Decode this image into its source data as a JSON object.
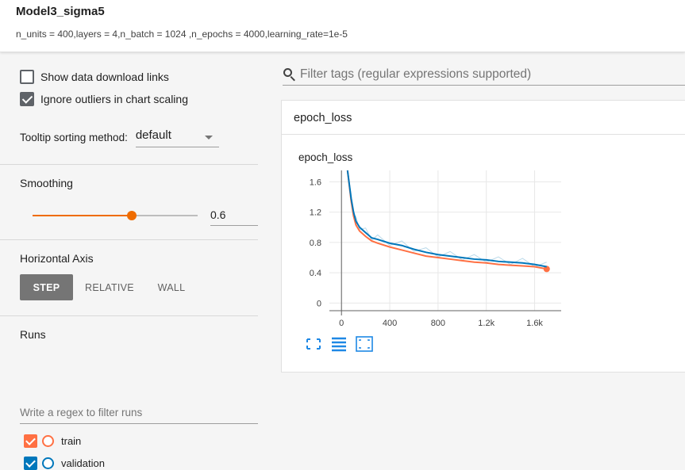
{
  "header": {
    "title": "Model3_sigma5",
    "subtitle": "n_units = 400,layers = 4,n_batch = 1024 ,n_epochs = 4000,learning_rate=1e-5"
  },
  "sidebar": {
    "show_download_label": "Show data download links",
    "show_download_checked": false,
    "ignore_outliers_label": "Ignore outliers in chart scaling",
    "ignore_outliers_checked": true,
    "tooltip_label": "Tooltip sorting method:",
    "tooltip_value": "default",
    "smoothing_label": "Smoothing",
    "smoothing_value": "0.6",
    "smoothing_fraction": 0.6,
    "horizontal_axis_label": "Horizontal Axis",
    "axis_options": [
      "STEP",
      "RELATIVE",
      "WALL"
    ],
    "axis_selected": "STEP",
    "runs_label": "Runs",
    "runs_filter_placeholder": "Write a regex to filter runs",
    "runs": [
      {
        "name": "train",
        "color": "#ff7043",
        "checked": true
      },
      {
        "name": "validation",
        "color": "#0077bb",
        "checked": true
      }
    ]
  },
  "main": {
    "search_placeholder": "Filter tags (regular expressions supported)",
    "card_header": "epoch_loss",
    "chart_title": "epoch_loss"
  },
  "accent_color": "#ef6c00",
  "chart_data": {
    "type": "line",
    "title": "epoch_loss",
    "xlabel": "",
    "ylabel": "",
    "xlim": [
      -100,
      1820
    ],
    "ylim": [
      -0.1,
      1.75
    ],
    "xticks": [
      "0",
      "400",
      "800",
      "1.2k",
      "1.6k"
    ],
    "xtick_values": [
      0,
      400,
      800,
      1200,
      1600
    ],
    "yticks": [
      "0",
      "0.4",
      "0.8",
      "1.2",
      "1.6"
    ],
    "ytick_values": [
      0,
      0.4,
      0.8,
      1.2,
      1.6
    ],
    "grid": true,
    "series": [
      {
        "name": "train",
        "color": "#ff7043",
        "x": [
          50,
          80,
          100,
          120,
          150,
          200,
          250,
          300,
          400,
          500,
          600,
          700,
          800,
          900,
          1000,
          1100,
          1200,
          1300,
          1400,
          1500,
          1600,
          1700
        ],
        "y": [
          1.75,
          1.35,
          1.15,
          1.03,
          0.95,
          0.88,
          0.82,
          0.79,
          0.74,
          0.7,
          0.66,
          0.62,
          0.6,
          0.58,
          0.56,
          0.54,
          0.53,
          0.51,
          0.5,
          0.49,
          0.48,
          0.45
        ]
      },
      {
        "name": "validation",
        "color": "#0077bb",
        "x": [
          50,
          80,
          100,
          120,
          150,
          200,
          250,
          300,
          400,
          500,
          600,
          700,
          800,
          900,
          1000,
          1100,
          1200,
          1300,
          1400,
          1500,
          1600,
          1700
        ],
        "y": [
          1.75,
          1.38,
          1.2,
          1.08,
          1.0,
          0.93,
          0.86,
          0.84,
          0.79,
          0.76,
          0.71,
          0.67,
          0.64,
          0.62,
          0.6,
          0.58,
          0.57,
          0.55,
          0.54,
          0.53,
          0.51,
          0.48
        ]
      }
    ]
  }
}
